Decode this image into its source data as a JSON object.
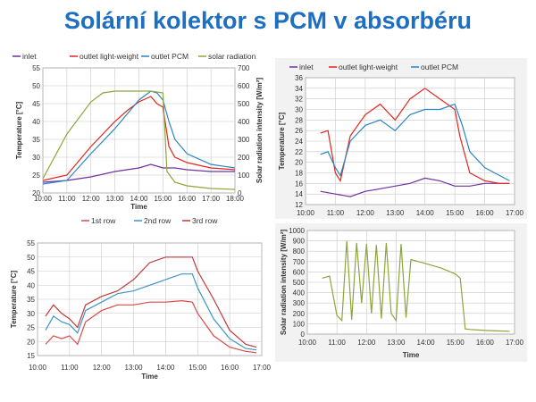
{
  "slide": {
    "title": "Solární kolektor s PCM v absorbéru"
  },
  "colors": {
    "title": "#1f6fc0",
    "inlet": "#7030a0",
    "outlet_light": "#e3261c",
    "outlet_pcm": "#2b84c4",
    "solar": "#8ba63a",
    "row1": "#d94a4a",
    "row2": "#3d95c7",
    "row3": "#c0393a"
  },
  "chart_data": [
    {
      "id": "a",
      "type": "line",
      "xlabel": "Time",
      "ylabel": "Temperature [°C]",
      "y2label": "Solar radiation intensity [W/m²]",
      "xlim": [
        "10:00",
        "18:00"
      ],
      "ylim": [
        20,
        55
      ],
      "y2lim": [
        0,
        700
      ],
      "xticks": [
        "10:00",
        "11:00",
        "12:00",
        "13:00",
        "14:00",
        "15:00",
        "16:00",
        "17:00",
        "18:00"
      ],
      "yticks": [
        20,
        25,
        30,
        35,
        40,
        45,
        50,
        55
      ],
      "y2ticks": [
        0,
        100,
        200,
        300,
        400,
        500,
        600,
        700
      ],
      "legend": "top",
      "grid": true,
      "series": [
        {
          "name": "inlet",
          "axis": "left",
          "color": "#7030a0",
          "x": [
            "10:00",
            "11:00",
            "12:00",
            "13:00",
            "14:00",
            "14:30",
            "15:00",
            "15:30",
            "16:00",
            "17:00",
            "18:00"
          ],
          "y": [
            23,
            23.5,
            24.5,
            26,
            27,
            28,
            27,
            27,
            26.5,
            26,
            26
          ]
        },
        {
          "name": "outlet light-weight",
          "axis": "left",
          "color": "#e3261c",
          "x": [
            "10:00",
            "11:00",
            "12:00",
            "13:00",
            "13:30",
            "14:00",
            "14:30",
            "14:45",
            "15:00",
            "15:15",
            "15:30",
            "16:00",
            "17:00",
            "18:00"
          ],
          "y": [
            23.5,
            25,
            33,
            40,
            43,
            45.5,
            47,
            45,
            44,
            33,
            30,
            28.5,
            27,
            26.5
          ]
        },
        {
          "name": "outlet PCM",
          "axis": "left",
          "color": "#2b84c4",
          "x": [
            "10:00",
            "11:00",
            "12:00",
            "13:00",
            "13:30",
            "14:00",
            "14:30",
            "14:45",
            "15:00",
            "15:15",
            "15:30",
            "16:00",
            "17:00",
            "18:00"
          ],
          "y": [
            22.5,
            23.5,
            31,
            38,
            42,
            46,
            48.5,
            48,
            46,
            40,
            35,
            31,
            28,
            27
          ]
        },
        {
          "name": "solar radiation",
          "axis": "right",
          "color": "#8ba63a",
          "x": [
            "10:00",
            "11:00",
            "12:00",
            "12:30",
            "13:00",
            "14:00",
            "14:30",
            "15:00",
            "15:10",
            "15:30",
            "16:00",
            "17:00",
            "18:00"
          ],
          "y": [
            80,
            330,
            510,
            560,
            570,
            570,
            570,
            560,
            120,
            60,
            40,
            25,
            20
          ]
        }
      ]
    },
    {
      "id": "b",
      "type": "line",
      "xlabel": "",
      "ylabel": "Temperature [°C]",
      "xlim": [
        "10:00",
        "17:00"
      ],
      "ylim": [
        12,
        36
      ],
      "xticks": [
        "10:00",
        "11:00",
        "12:00",
        "13:00",
        "14:00",
        "15:00",
        "16:00",
        "17:00"
      ],
      "yticks": [
        12,
        14,
        16,
        18,
        20,
        22,
        24,
        26,
        28,
        30,
        32,
        34,
        36
      ],
      "legend": "top",
      "grid": true,
      "series": [
        {
          "name": "inlet",
          "color": "#7030a0",
          "x": [
            "10:30",
            "11:00",
            "11:30",
            "12:00",
            "12:30",
            "13:00",
            "13:30",
            "14:00",
            "14:30",
            "15:00",
            "15:30",
            "16:00",
            "16:30",
            "16:50"
          ],
          "y": [
            14.5,
            14,
            13.5,
            14.5,
            15,
            15.5,
            16,
            17,
            16.5,
            15.5,
            15.5,
            16,
            16,
            16
          ]
        },
        {
          "name": "outlet light-weight",
          "color": "#e3261c",
          "x": [
            "10:30",
            "10:45",
            "11:00",
            "11:10",
            "11:30",
            "12:00",
            "12:30",
            "13:00",
            "13:30",
            "14:00",
            "14:30",
            "15:00",
            "15:10",
            "15:30",
            "16:00",
            "16:30",
            "16:50"
          ],
          "y": [
            25.5,
            26,
            18,
            16.5,
            25,
            29,
            31,
            28,
            32,
            34,
            32,
            30,
            25,
            18,
            16.5,
            16,
            16
          ]
        },
        {
          "name": "outlet PCM",
          "color": "#2b84c4",
          "x": [
            "10:30",
            "10:45",
            "11:00",
            "11:10",
            "11:30",
            "12:00",
            "12:30",
            "13:00",
            "13:30",
            "14:00",
            "14:30",
            "15:00",
            "15:15",
            "15:30",
            "16:00",
            "16:30",
            "16:50"
          ],
          "y": [
            21.5,
            22,
            19,
            17.5,
            24,
            27,
            28,
            26,
            29,
            30,
            30,
            31,
            27,
            22,
            19,
            17.5,
            16.5
          ]
        }
      ]
    },
    {
      "id": "c",
      "type": "line",
      "xlabel": "Time",
      "ylabel": "Temperature [°C]",
      "xlim": [
        "10:00",
        "17:00"
      ],
      "ylim": [
        15,
        55
      ],
      "xticks": [
        "10:00",
        "11:00",
        "12:00",
        "13:00",
        "14:00",
        "15:00",
        "16:00",
        "17:00"
      ],
      "yticks": [
        15,
        20,
        25,
        30,
        35,
        40,
        45,
        50,
        55
      ],
      "legend": "top",
      "grid": true,
      "series": [
        {
          "name": "1st row",
          "color": "#d94a4a",
          "x": [
            "10:15",
            "10:30",
            "10:45",
            "11:00",
            "11:15",
            "11:30",
            "12:00",
            "12:30",
            "13:00",
            "13:30",
            "14:00",
            "14:30",
            "14:50",
            "15:00",
            "15:30",
            "16:00",
            "16:30",
            "16:50"
          ],
          "y": [
            19,
            22,
            21,
            22,
            19,
            27,
            31,
            33,
            33,
            34,
            34,
            34.5,
            34,
            30,
            22,
            18,
            16.5,
            16
          ]
        },
        {
          "name": "2nd row",
          "color": "#3d95c7",
          "x": [
            "10:15",
            "10:30",
            "10:45",
            "11:00",
            "11:15",
            "11:30",
            "12:00",
            "12:30",
            "13:00",
            "13:30",
            "14:00",
            "14:30",
            "14:50",
            "15:00",
            "15:30",
            "16:00",
            "16:30",
            "16:50"
          ],
          "y": [
            24,
            29,
            27,
            26,
            23,
            31,
            34,
            37,
            38,
            40,
            42,
            44,
            44,
            39,
            28,
            21,
            17.5,
            17
          ]
        },
        {
          "name": "3rd row",
          "color": "#c0393a",
          "x": [
            "10:15",
            "10:30",
            "10:45",
            "11:00",
            "11:15",
            "11:30",
            "12:00",
            "12:30",
            "13:00",
            "13:30",
            "14:00",
            "14:30",
            "14:50",
            "15:00",
            "15:30",
            "16:00",
            "16:30",
            "16:50"
          ],
          "y": [
            29,
            33,
            30,
            28,
            25,
            33,
            36,
            38,
            42,
            48,
            50,
            50,
            50,
            45,
            35,
            24,
            19,
            18
          ]
        }
      ]
    },
    {
      "id": "d",
      "type": "line",
      "xlabel": "Time",
      "ylabel": "Solar radiation intensity [W/m²]",
      "xlim": [
        "10:00",
        "17:00"
      ],
      "ylim": [
        0,
        1000
      ],
      "xticks": [
        "10:00",
        "11:00",
        "12:00",
        "13:00",
        "14:00",
        "15:00",
        "16:00",
        "17:00"
      ],
      "yticks": [
        0,
        100,
        200,
        300,
        400,
        500,
        600,
        700,
        800,
        900,
        1000
      ],
      "legend": "none",
      "grid": true,
      "series": [
        {
          "name": "",
          "color": "#8ba63a",
          "x": [
            "10:30",
            "10:45",
            "11:00",
            "11:10",
            "11:20",
            "11:30",
            "11:40",
            "11:50",
            "12:00",
            "12:10",
            "12:20",
            "12:30",
            "12:40",
            "12:50",
            "13:00",
            "13:10",
            "13:20",
            "13:30",
            "13:45",
            "14:00",
            "14:30",
            "15:00",
            "15:10",
            "15:20",
            "15:30",
            "15:45",
            "16:00",
            "16:30",
            "16:50"
          ],
          "y": [
            540,
            560,
            180,
            130,
            900,
            140,
            880,
            300,
            870,
            200,
            860,
            150,
            880,
            200,
            130,
            870,
            160,
            720,
            700,
            680,
            640,
            580,
            540,
            50,
            45,
            40,
            35,
            30,
            28
          ]
        }
      ]
    }
  ]
}
